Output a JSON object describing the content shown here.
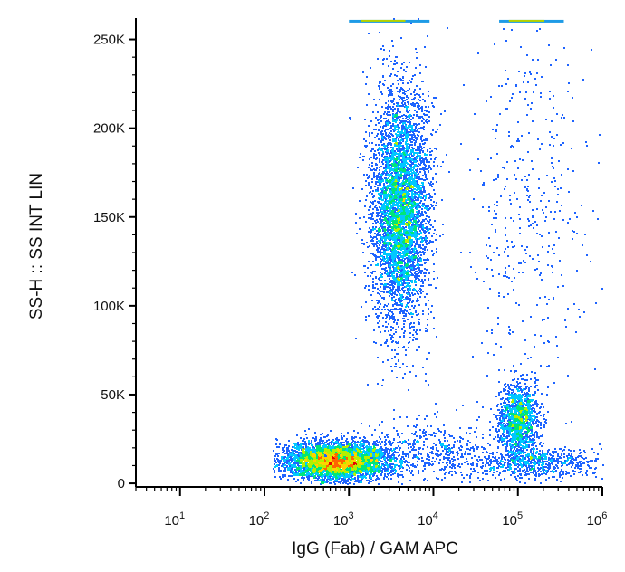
{
  "chart_data": {
    "type": "scatter",
    "subtype": "flow-cytometry-density-dot-plot",
    "xlabel": "IgG (Fab)  / GAM APC",
    "ylabel": "SS-H :: SS INT LIN",
    "x_scale": "log",
    "xlim": [
      3,
      1000000
    ],
    "ylim": [
      -2000,
      262000
    ],
    "x_ticks": [
      {
        "value": 10,
        "base": "10",
        "exp": "1"
      },
      {
        "value": 100,
        "base": "10",
        "exp": "2"
      },
      {
        "value": 1000,
        "base": "10",
        "exp": "3"
      },
      {
        "value": 10000,
        "base": "10",
        "exp": "4"
      },
      {
        "value": 100000,
        "base": "10",
        "exp": "5"
      },
      {
        "value": 1000000,
        "base": "10",
        "exp": "6"
      }
    ],
    "y_ticks": [
      {
        "value": 0,
        "label": "0"
      },
      {
        "value": 50000,
        "label": "50K"
      },
      {
        "value": 100000,
        "label": "100K"
      },
      {
        "value": 150000,
        "label": "150K"
      },
      {
        "value": 200000,
        "label": "200K"
      },
      {
        "value": 250000,
        "label": "250K"
      }
    ],
    "grid": false,
    "legend": "none",
    "colormap": [
      "#0000c8",
      "#1e64ff",
      "#00c8ff",
      "#00e678",
      "#b4f000",
      "#ffd200",
      "#ff6400",
      "#e60000"
    ],
    "populations": [
      {
        "center_x": 700,
        "center_y": 13000,
        "spread_log_x": 0.32,
        "spread_y": 5500,
        "points": 4200,
        "peak_density": "high"
      },
      {
        "center_x": 4000,
        "center_y": 155000,
        "spread_log_x": 0.17,
        "spread_y": 33000,
        "points": 4800,
        "peak_density": "medium"
      },
      {
        "center_x": 100000,
        "center_y": 36000,
        "spread_log_x": 0.12,
        "spread_y": 11000,
        "points": 1300,
        "peak_density": "medium"
      },
      {
        "center_x": 130000,
        "center_y": 150000,
        "spread_log_x": 0.35,
        "spread_y": 55000,
        "points": 420,
        "peak_density": "low"
      },
      {
        "center_x": 150000,
        "center_y": 12000,
        "spread_log_x": 0.4,
        "spread_y": 4500,
        "points": 700,
        "peak_density": "low"
      },
      {
        "center_x": 8000,
        "center_y": 18000,
        "spread_log_x": 0.45,
        "spread_y": 9000,
        "points": 500,
        "peak_density": "low"
      }
    ],
    "saturation_band": {
      "y": 260000,
      "x_ranges": [
        [
          1000,
          9000
        ],
        [
          60000,
          350000
        ]
      ]
    }
  }
}
